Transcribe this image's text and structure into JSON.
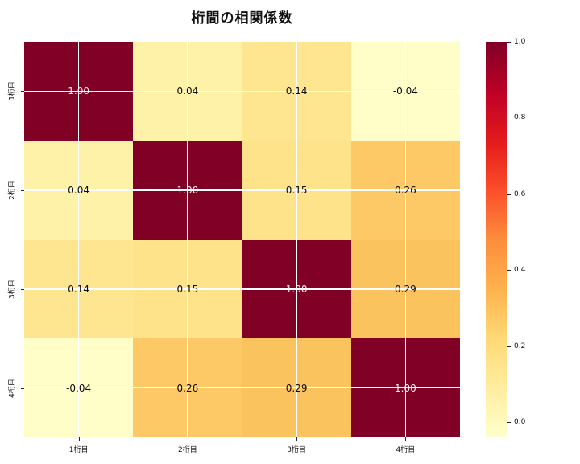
{
  "title": "桁間の相関係数",
  "chart_data": {
    "type": "heatmap",
    "title": "桁間の相関係数",
    "x_tick_labels": [
      "1桁目",
      "2桁目",
      "3桁目",
      "4桁目"
    ],
    "y_tick_labels": [
      "1桁目",
      "2桁目",
      "3桁目",
      "4桁目"
    ],
    "matrix": [
      [
        1.0,
        0.04,
        0.14,
        -0.04
      ],
      [
        0.04,
        1.0,
        0.15,
        0.26
      ],
      [
        0.14,
        0.15,
        1.0,
        0.29
      ],
      [
        -0.04,
        0.26,
        0.29,
        1.0
      ]
    ],
    "cell_labels": [
      [
        "1.00",
        "0.04",
        "0.14",
        "-0.04"
      ],
      [
        "0.04",
        "1.00",
        "0.15",
        "0.26"
      ],
      [
        "0.14",
        "0.15",
        "1.00",
        "0.29"
      ],
      [
        "-0.04",
        "0.26",
        "0.29",
        "1.00"
      ]
    ],
    "cell_colors": [
      [
        "#800026",
        "#fdf2a8",
        "#fee590",
        "#fffdc8"
      ],
      [
        "#fdf2a8",
        "#800026",
        "#fee38b",
        "#fcc966"
      ],
      [
        "#fee590",
        "#fee38b",
        "#800026",
        "#fbc35e"
      ],
      [
        "#fffdc8",
        "#fcc966",
        "#fbc35e",
        "#800026"
      ]
    ],
    "colormap": "YlOrRd",
    "colormap_stops": [
      "#800026",
      "#bd0026",
      "#e31a1c",
      "#fc4e2a",
      "#fd8d3c",
      "#feb24c",
      "#fed976",
      "#ffeda0",
      "#ffffcc"
    ],
    "vmin": -0.04,
    "vmax": 1.0,
    "colorbar_ticks": [
      {
        "value": 1.0,
        "label": "1.0"
      },
      {
        "value": 0.8,
        "label": "0.8"
      },
      {
        "value": 0.6,
        "label": "0.6"
      },
      {
        "value": 0.4,
        "label": "0.4"
      },
      {
        "value": 0.2,
        "label": "0.2"
      },
      {
        "value": 0.0,
        "label": "0.0"
      }
    ],
    "grid": true,
    "grid_color": "#ffffff",
    "annot_color_dark": "#0a0a0a",
    "annot_color_light": "#eeeeee",
    "background": "#ffffff",
    "legend_position": "right-colorbar"
  }
}
